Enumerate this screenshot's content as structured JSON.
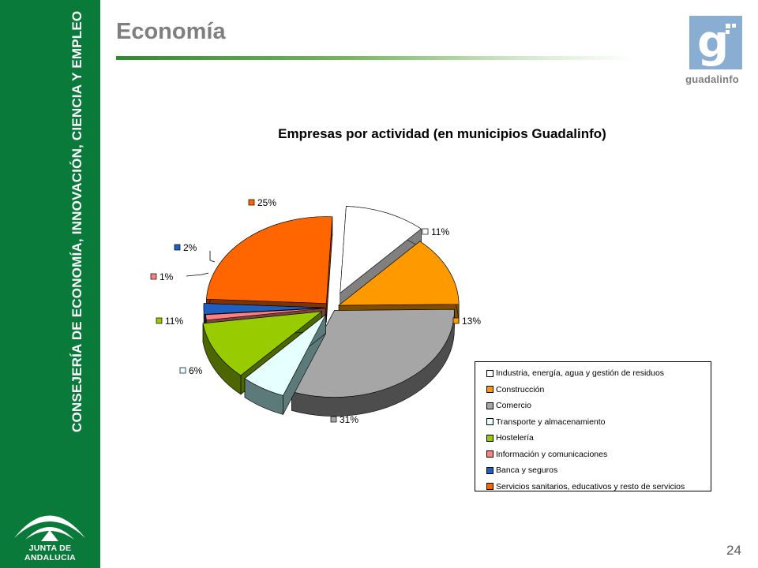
{
  "sidebar": {
    "org_text": "CONSEJERÍA DE ECONOMÍA, INNOVACIÓN, CIENCIA Y EMPLEO",
    "logo_text": "JUNTA DE ANDALUCIA",
    "color": "#0a7a3a"
  },
  "header": {
    "title": "Economía",
    "brand_glyph": "g",
    "brand_text": "guadalinfo"
  },
  "footer": {
    "page_number": "24"
  },
  "chart_data": {
    "type": "pie",
    "style": "exploded-3d",
    "title": "Empresas por actividad (en municipios Guadalinfo)",
    "legend_position": "right-bottom",
    "categories": [
      "Industria, energía, agua y gestión de residuos",
      "Construcción",
      "Comercio",
      "Transporte y almacenamiento",
      "Hostelería",
      "Información y comunicaciones",
      "Banca y seguros",
      "Servicios sanitarios, educativos y resto de servicios"
    ],
    "values": [
      11,
      13,
      31,
      6,
      11,
      1,
      2,
      25
    ],
    "labels": [
      "11%",
      "13%",
      "31%",
      "6%",
      "11%",
      "1%",
      "2%",
      "25%"
    ],
    "colors": [
      "#ffffff",
      "#ff9900",
      "#a6a6a6",
      "#e6ffff",
      "#99cc00",
      "#ff8080",
      "#1f5fc0",
      "#ff6600"
    ],
    "side_colors": [
      "#808080",
      "#7f4c00",
      "#4d4d4d",
      "#5c7a7a",
      "#4c6600",
      "#7f4040",
      "#0f2f60",
      "#7f3300"
    ]
  }
}
